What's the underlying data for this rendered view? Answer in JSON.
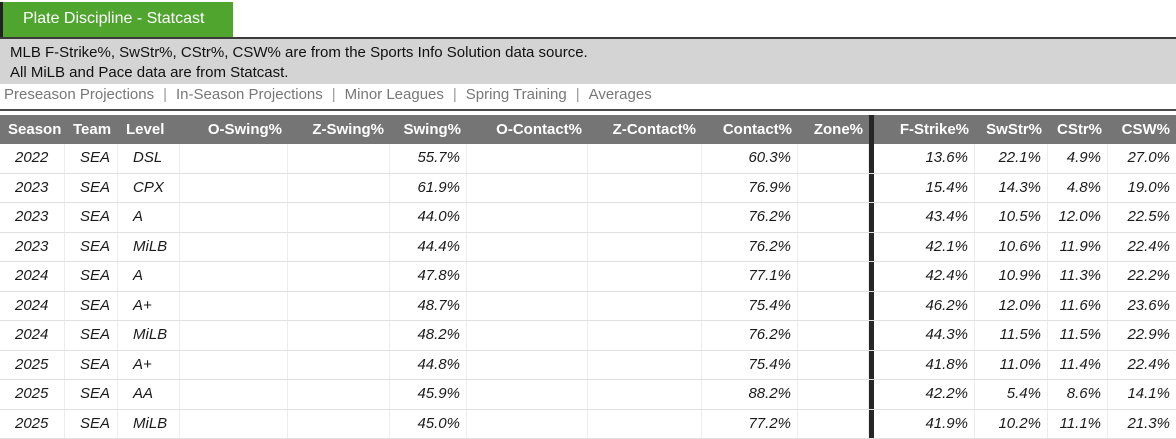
{
  "page": {
    "tab_title": "Plate Discipline - Statcast",
    "notice_line1": "MLB F-Strike%, SwStr%, CStr%, CSW% are from the Sports Info Solution data source.",
    "notice_line2": "All MiLB and Pace data are from Statcast.",
    "nav_separator": "|",
    "nav_items": [
      "Preseason Projections",
      "In-Season Projections",
      "Minor Leagues",
      "Spring Training",
      "Averages"
    ]
  },
  "colors": {
    "tab_green": "#4fa52e",
    "banner_gray": "#d4d4d4",
    "header_gray": "#757575",
    "section_divider": "#262626"
  },
  "table": {
    "columns": [
      {
        "key": "season",
        "label": "Season"
      },
      {
        "key": "team",
        "label": "Team"
      },
      {
        "key": "level",
        "label": "Level"
      },
      {
        "key": "o_swing",
        "label": "O-Swing%"
      },
      {
        "key": "z_swing",
        "label": "Z-Swing%"
      },
      {
        "key": "swing",
        "label": "Swing%"
      },
      {
        "key": "o_contact",
        "label": "O-Contact%"
      },
      {
        "key": "z_contact",
        "label": "Z-Contact%"
      },
      {
        "key": "contact",
        "label": "Contact%"
      },
      {
        "key": "zone",
        "label": "Zone%"
      },
      {
        "key": "f_strike",
        "label": "F-Strike%"
      },
      {
        "key": "swstr",
        "label": "SwStr%"
      },
      {
        "key": "cstr",
        "label": "CStr%"
      },
      {
        "key": "csw",
        "label": "CSW%"
      }
    ],
    "rows": [
      {
        "season": "2022",
        "team": "SEA",
        "level": "DSL",
        "o_swing": "",
        "z_swing": "",
        "swing": "55.7%",
        "o_contact": "",
        "z_contact": "",
        "contact": "60.3%",
        "zone": "",
        "f_strike": "13.6%",
        "swstr": "22.1%",
        "cstr": "4.9%",
        "csw": "27.0%"
      },
      {
        "season": "2023",
        "team": "SEA",
        "level": "CPX",
        "o_swing": "",
        "z_swing": "",
        "swing": "61.9%",
        "o_contact": "",
        "z_contact": "",
        "contact": "76.9%",
        "zone": "",
        "f_strike": "15.4%",
        "swstr": "14.3%",
        "cstr": "4.8%",
        "csw": "19.0%"
      },
      {
        "season": "2023",
        "team": "SEA",
        "level": "A",
        "o_swing": "",
        "z_swing": "",
        "swing": "44.0%",
        "o_contact": "",
        "z_contact": "",
        "contact": "76.2%",
        "zone": "",
        "f_strike": "43.4%",
        "swstr": "10.5%",
        "cstr": "12.0%",
        "csw": "22.5%"
      },
      {
        "season": "2023",
        "team": "SEA",
        "level": "MiLB",
        "o_swing": "",
        "z_swing": "",
        "swing": "44.4%",
        "o_contact": "",
        "z_contact": "",
        "contact": "76.2%",
        "zone": "",
        "f_strike": "42.1%",
        "swstr": "10.6%",
        "cstr": "11.9%",
        "csw": "22.4%"
      },
      {
        "season": "2024",
        "team": "SEA",
        "level": "A",
        "o_swing": "",
        "z_swing": "",
        "swing": "47.8%",
        "o_contact": "",
        "z_contact": "",
        "contact": "77.1%",
        "zone": "",
        "f_strike": "42.4%",
        "swstr": "10.9%",
        "cstr": "11.3%",
        "csw": "22.2%"
      },
      {
        "season": "2024",
        "team": "SEA",
        "level": "A+",
        "o_swing": "",
        "z_swing": "",
        "swing": "48.7%",
        "o_contact": "",
        "z_contact": "",
        "contact": "75.4%",
        "zone": "",
        "f_strike": "46.2%",
        "swstr": "12.0%",
        "cstr": "11.6%",
        "csw": "23.6%"
      },
      {
        "season": "2024",
        "team": "SEA",
        "level": "MiLB",
        "o_swing": "",
        "z_swing": "",
        "swing": "48.2%",
        "o_contact": "",
        "z_contact": "",
        "contact": "76.2%",
        "zone": "",
        "f_strike": "44.3%",
        "swstr": "11.5%",
        "cstr": "11.5%",
        "csw": "22.9%"
      },
      {
        "season": "2025",
        "team": "SEA",
        "level": "A+",
        "o_swing": "",
        "z_swing": "",
        "swing": "44.8%",
        "o_contact": "",
        "z_contact": "",
        "contact": "75.4%",
        "zone": "",
        "f_strike": "41.8%",
        "swstr": "11.0%",
        "cstr": "11.4%",
        "csw": "22.4%"
      },
      {
        "season": "2025",
        "team": "SEA",
        "level": "AA",
        "o_swing": "",
        "z_swing": "",
        "swing": "45.9%",
        "o_contact": "",
        "z_contact": "",
        "contact": "88.2%",
        "zone": "",
        "f_strike": "42.2%",
        "swstr": "5.4%",
        "cstr": "8.6%",
        "csw": "14.1%"
      },
      {
        "season": "2025",
        "team": "SEA",
        "level": "MiLB",
        "o_swing": "",
        "z_swing": "",
        "swing": "45.0%",
        "o_contact": "",
        "z_contact": "",
        "contact": "77.2%",
        "zone": "",
        "f_strike": "41.9%",
        "swstr": "10.2%",
        "cstr": "11.1%",
        "csw": "21.3%"
      }
    ]
  }
}
